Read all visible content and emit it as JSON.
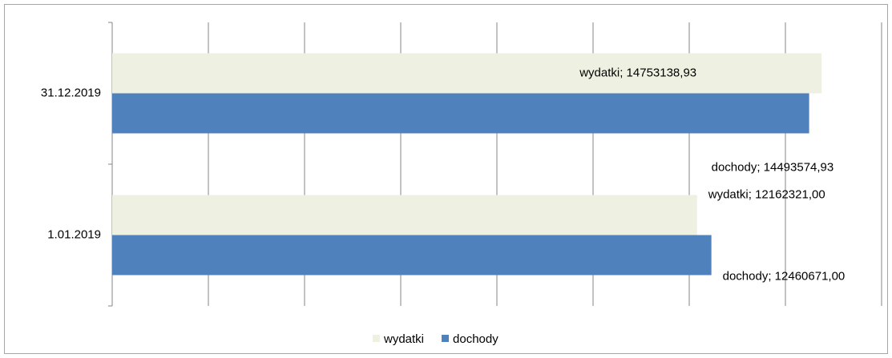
{
  "chart_data": {
    "type": "hbar",
    "categories": [
      "31.12.2019",
      "1.01.2019"
    ],
    "series": [
      {
        "name": "wydatki",
        "color": "#eef1e1",
        "values": [
          14753138.93,
          12162321.0
        ],
        "value_labels": [
          "wydatki; 14753138,93",
          "wydatki; 12162321,00"
        ]
      },
      {
        "name": "dochody",
        "color": "#4f81bd",
        "values": [
          14493574.93,
          12460671.0
        ],
        "value_labels": [
          "dochody; 14493574,93",
          "dochody; 12460671,00"
        ]
      }
    ],
    "xlim": [
      0,
      16000000
    ],
    "xticks": [
      0,
      2000000,
      4000000,
      6000000,
      8000000,
      10000000,
      12000000,
      14000000,
      16000000
    ],
    "grid": true,
    "legend": "bottom"
  }
}
